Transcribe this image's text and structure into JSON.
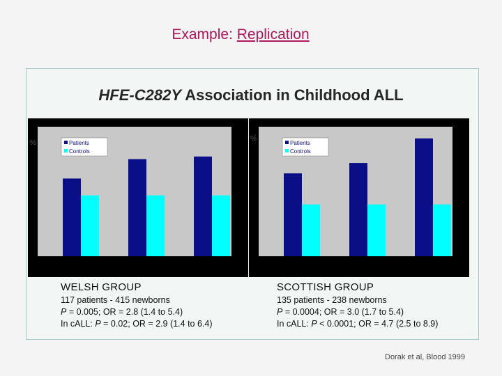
{
  "slide": {
    "title_prefix": "Example: ",
    "title_link": "Replication"
  },
  "panel": {
    "title_gene": "HFE-C282Y",
    "title_rest": " Association in Childhood ALL"
  },
  "colors": {
    "patients": "#0b0f87",
    "controls": "#00ffff",
    "plot_bg": "#c8c8c8",
    "frame": "#000000"
  },
  "chart_data": [
    {
      "type": "bar",
      "categories": [
        "",
        "",
        ""
      ],
      "series": [
        {
          "name": "Patients",
          "values": [
            60,
            75,
            77
          ]
        },
        {
          "name": "Controls",
          "values": [
            47,
            47,
            47
          ]
        }
      ],
      "ylabel": "%",
      "ylim": [
        0,
        100
      ],
      "legend": "top-left"
    },
    {
      "type": "bar",
      "categories": [
        "",
        "",
        ""
      ],
      "series": [
        {
          "name": "Patients",
          "values": [
            64,
            72,
            91
          ]
        },
        {
          "name": "Controls",
          "values": [
            40,
            40,
            40
          ]
        }
      ],
      "ylabel": "%",
      "ylim": [
        0,
        100
      ],
      "legend": "top-left"
    }
  ],
  "welsh": {
    "name": "WELSH GROUP",
    "line1": "117 patients - 415 newborns",
    "line2_p": "P",
    "line2_rest": " = 0.005; OR = 2.8 (1.4 to 5.4)",
    "line3_pre": "In cALL: ",
    "line3_p": "P",
    "line3_rest": " = 0.02; OR = 2.9 (1.4 to 6.4)"
  },
  "scottish": {
    "name": "SCOTTISH GROUP",
    "line1": "135 patients - 238 newborns",
    "line2_p": "P",
    "line2_rest": " = 0.0004; OR = 3.0 (1.7 to 5.4)",
    "line3_pre": "In cALL: ",
    "line3_p": "P",
    "line3_rest": " < 0.0001; OR = 4.7 (2.5 to 8.9)"
  },
  "citation": "Dorak et al, Blood 1999"
}
